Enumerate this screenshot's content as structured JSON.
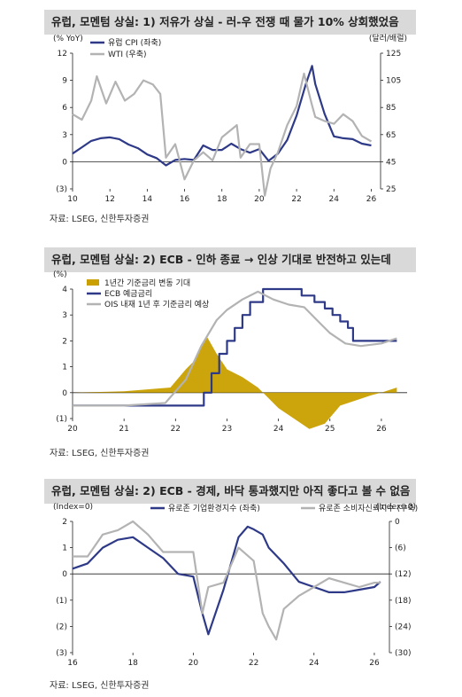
{
  "charts": [
    {
      "title": "유럽, 모멘텀 상실: 1) 저유가 상실 - 러-우 전쟁 때 물가 10% 상회했었음",
      "source": "자료: LSEG, 신한투자증권",
      "left_unit": "(% YoY)",
      "right_unit": "(달러/배럴)",
      "legend": [
        "유럽 CPI (좌축)",
        "WTI (우축)"
      ],
      "colors": {
        "series1": "#2e3a87",
        "series2": "#b3b3b3"
      }
    },
    {
      "title": "유럽, 모멘텀 상실: 2) ECB - 인하 종료 → 인상 기대로 반전하고 있는데",
      "source": "자료: LSEG, 신한투자증권",
      "left_unit": "(%)",
      "legend": [
        "1년간 기준금리 변동 기대",
        "ECB 예금금리",
        "OIS 내재 1년 후 기준금리 예상"
      ],
      "colors": {
        "bars": "#c9a000",
        "series1": "#2e3a87",
        "series2": "#b3b3b3"
      }
    },
    {
      "title": "유럽, 모멘텀 상실: 2) ECB - 경제, 바닥 통과했지만 아직 좋다고 볼 수 없음",
      "source": "자료: LSEG, 신한투자증권",
      "left_unit": "(Index=0)",
      "right_unit": "(Index=0)",
      "legend": [
        "유로존 기업환경지수 (좌축)",
        "유로존 소비자신뢰지수 (우축)"
      ],
      "colors": {
        "series1": "#2e3a87",
        "series2": "#b3b3b3"
      }
    }
  ],
  "chart_data": [
    {
      "type": "line",
      "title": "유럽, 모멘텀 상실: 1) 저유가 상실 - 러-우 전쟁 때 물가 10% 상회했었음",
      "xlabel": "",
      "ylabel": "(% YoY)",
      "y2label": "(달러/배럴)",
      "xlim": [
        2010,
        2026.5
      ],
      "ylim": [
        -3,
        12
      ],
      "yticks": [
        -3,
        0,
        3,
        6,
        9,
        12
      ],
      "y2lim": [
        25,
        125
      ],
      "y2ticks": [
        25,
        45,
        65,
        85,
        105,
        125
      ],
      "xticks": [
        10,
        12,
        14,
        16,
        18,
        20,
        22,
        24,
        26
      ],
      "grid": false,
      "legend": "top-left",
      "series": [
        {
          "name": "유럽 CPI (좌축)",
          "axis": "left",
          "x": [
            2010.0,
            2010.5,
            2011.0,
            2011.5,
            2012.0,
            2012.5,
            2013.0,
            2013.5,
            2014.0,
            2014.5,
            2015.0,
            2015.5,
            2016.0,
            2016.5,
            2017.0,
            2017.5,
            2018.0,
            2018.5,
            2019.0,
            2019.5,
            2020.0,
            2020.5,
            2021.0,
            2021.5,
            2022.0,
            2022.5,
            2022.83,
            2023.0,
            2023.5,
            2024.0,
            2024.5,
            2025.0,
            2025.5,
            2026.0
          ],
          "values": [
            0.9,
            1.6,
            2.3,
            2.6,
            2.7,
            2.5,
            1.9,
            1.5,
            0.8,
            0.4,
            -0.4,
            0.2,
            0.3,
            0.2,
            1.8,
            1.3,
            1.3,
            2.0,
            1.4,
            1.0,
            1.4,
            0.1,
            0.9,
            2.4,
            5.1,
            8.6,
            10.6,
            8.6,
            5.3,
            2.8,
            2.6,
            2.5,
            2.0,
            1.8
          ]
        },
        {
          "name": "WTI (우축)",
          "axis": "right",
          "x": [
            2010.0,
            2010.5,
            2011.0,
            2011.3,
            2011.8,
            2012.3,
            2012.8,
            2013.3,
            2013.8,
            2014.3,
            2014.7,
            2015.0,
            2015.5,
            2016.0,
            2016.5,
            2017.0,
            2017.5,
            2018.0,
            2018.8,
            2019.0,
            2019.5,
            2020.0,
            2020.3,
            2020.6,
            2021.0,
            2021.5,
            2022.0,
            2022.4,
            2022.8,
            2023.0,
            2023.5,
            2024.0,
            2024.5,
            2025.0,
            2025.5,
            2026.0
          ],
          "values": [
            80,
            76,
            90,
            108,
            88,
            104,
            90,
            95,
            105,
            102,
            95,
            48,
            58,
            32,
            46,
            52,
            46,
            63,
            72,
            48,
            58,
            58,
            20,
            40,
            52,
            72,
            86,
            110,
            88,
            78,
            75,
            73,
            80,
            75,
            64,
            60
          ]
        }
      ]
    },
    {
      "type": "line",
      "title": "유럽, 모멘텀 상실: 2) ECB - 인하 종료 → 인상 기대로 반전하고 있는데",
      "xlabel": "",
      "ylabel": "(%)",
      "xlim": [
        2020,
        2026.5
      ],
      "ylim": [
        -1,
        4
      ],
      "yticks": [
        -1,
        0,
        1,
        2,
        3,
        4
      ],
      "xticks": [
        20,
        21,
        22,
        23,
        24,
        25,
        26
      ],
      "grid": false,
      "legend": "top-left",
      "series": [
        {
          "name": "1년간 기준금리 변동 기대",
          "type": "area",
          "x": [
            2020.0,
            2021.0,
            2021.9,
            2022.2,
            2022.4,
            2022.6,
            2022.8,
            2023.0,
            2023.3,
            2023.6,
            2023.8,
            2024.0,
            2024.3,
            2024.6,
            2024.9,
            2025.2,
            2025.5,
            2025.8,
            2026.0,
            2026.3
          ],
          "values": [
            0.0,
            0.05,
            0.2,
            0.9,
            1.3,
            2.2,
            1.5,
            0.9,
            0.6,
            0.2,
            -0.2,
            -0.6,
            -1.0,
            -1.4,
            -1.2,
            -0.5,
            -0.3,
            -0.1,
            0.0,
            0.2
          ]
        },
        {
          "name": "ECB 예금금리",
          "axis": "left",
          "x": [
            2020.0,
            2022.55,
            2022.55,
            2022.7,
            2022.7,
            2022.85,
            2022.85,
            2023.0,
            2023.0,
            2023.15,
            2023.15,
            2023.3,
            2023.3,
            2023.45,
            2023.45,
            2023.7,
            2023.7,
            2024.45,
            2024.45,
            2024.7,
            2024.7,
            2024.9,
            2024.9,
            2025.05,
            2025.05,
            2025.2,
            2025.2,
            2025.35,
            2025.35,
            2025.45,
            2025.45,
            2026.3
          ],
          "values": [
            -0.5,
            -0.5,
            0.0,
            0.0,
            0.75,
            0.75,
            1.5,
            1.5,
            2.0,
            2.0,
            2.5,
            2.5,
            3.0,
            3.0,
            3.5,
            3.5,
            4.0,
            4.0,
            3.75,
            3.75,
            3.5,
            3.5,
            3.25,
            3.25,
            3.0,
            3.0,
            2.75,
            2.75,
            2.5,
            2.5,
            2.0,
            2.0
          ]
        },
        {
          "name": "OIS 내재 1년 후 기준금리 예상",
          "axis": "left",
          "x": [
            2020.0,
            2021.0,
            2021.8,
            2022.2,
            2022.5,
            2022.8,
            2023.0,
            2023.3,
            2023.6,
            2023.9,
            2024.2,
            2024.5,
            2024.8,
            2025.0,
            2025.3,
            2025.6,
            2026.0,
            2026.3
          ],
          "values": [
            -0.5,
            -0.5,
            -0.4,
            0.5,
            1.8,
            2.8,
            3.2,
            3.6,
            3.9,
            3.6,
            3.4,
            3.3,
            2.7,
            2.3,
            1.9,
            1.8,
            1.9,
            2.1
          ]
        }
      ]
    },
    {
      "type": "line",
      "title": "유럽, 모멘텀 상실: 2) ECB - 경제, 바닥 통과했지만 아직 좋다고 볼 수 없음",
      "xlabel": "",
      "ylabel": "(Index=0)",
      "y2label": "(Index=0)",
      "xlim": [
        2016,
        2026.5
      ],
      "ylim": [
        -3,
        2
      ],
      "yticks": [
        -3,
        -2,
        -1,
        0,
        1,
        2
      ],
      "y2lim": [
        -30,
        0
      ],
      "y2ticks": [
        -30,
        -24,
        -18,
        -12,
        -6,
        0
      ],
      "xticks": [
        16,
        18,
        20,
        22,
        24,
        26
      ],
      "grid": false,
      "legend": "top-center",
      "series": [
        {
          "name": "유로존 기업환경지수 (좌축)",
          "axis": "left",
          "x": [
            2016.0,
            2016.5,
            2017.0,
            2017.5,
            2018.0,
            2018.5,
            2019.0,
            2019.5,
            2020.0,
            2020.3,
            2020.5,
            2021.0,
            2021.5,
            2021.8,
            2022.0,
            2022.3,
            2022.5,
            2023.0,
            2023.5,
            2024.0,
            2024.5,
            2025.0,
            2025.5,
            2026.0,
            2026.2
          ],
          "values": [
            0.2,
            0.4,
            1.0,
            1.3,
            1.4,
            1.0,
            0.6,
            0.0,
            -0.1,
            -1.5,
            -2.3,
            -0.6,
            1.4,
            1.8,
            1.7,
            1.5,
            1.0,
            0.4,
            -0.3,
            -0.5,
            -0.7,
            -0.7,
            -0.6,
            -0.5,
            -0.3
          ]
        },
        {
          "name": "유로존 소비자신뢰지수 (우축)",
          "axis": "right",
          "x": [
            2016.0,
            2016.5,
            2017.0,
            2017.5,
            2018.0,
            2018.5,
            2019.0,
            2019.5,
            2020.0,
            2020.3,
            2020.5,
            2021.0,
            2021.5,
            2022.0,
            2022.3,
            2022.5,
            2022.75,
            2023.0,
            2023.5,
            2024.0,
            2024.5,
            2025.0,
            2025.5,
            2026.0,
            2026.2
          ],
          "values": [
            -8,
            -8,
            -3,
            -2,
            0,
            -3,
            -7,
            -7,
            -7,
            -21,
            -15,
            -14,
            -6,
            -9,
            -21,
            -24,
            -27,
            -20,
            -17,
            -15,
            -13,
            -14,
            -15,
            -14,
            -14
          ]
        }
      ]
    }
  ]
}
